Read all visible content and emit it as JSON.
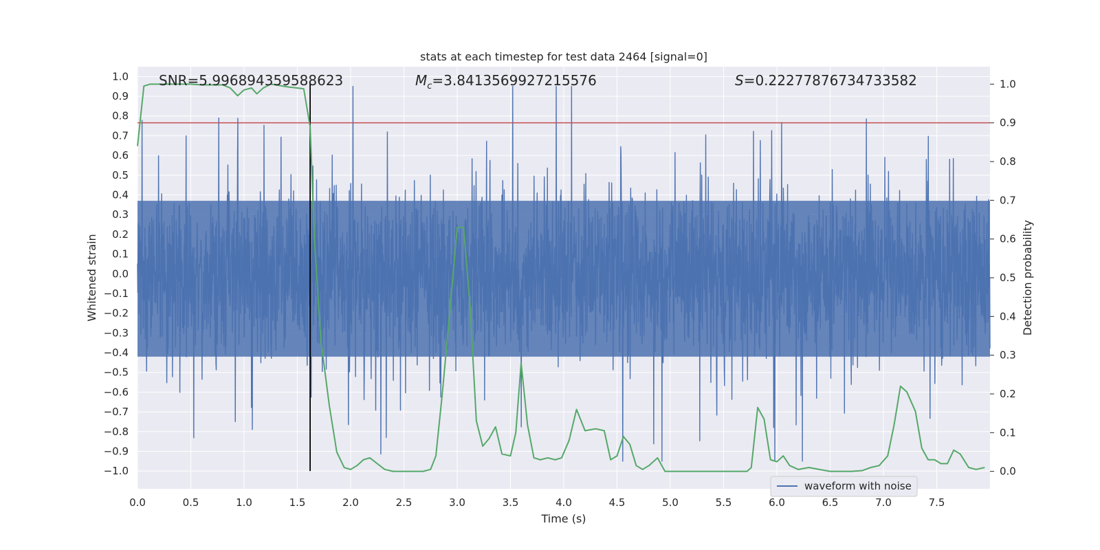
{
  "chart_data": {
    "type": "line",
    "title": "stats at each timestep for test data 2464 [signal=0]",
    "xlabel": "Time (s)",
    "ylabel_left": "Whitened strain",
    "ylabel_right": "Detection probability",
    "xlim": [
      0.0,
      8.0
    ],
    "ylim_left": [
      -1.09,
      1.05
    ],
    "ylim_right": [
      -0.045,
      1.045
    ],
    "x_ticks": [
      "0.0",
      "0.5",
      "1.0",
      "1.5",
      "2.0",
      "2.5",
      "3.0",
      "3.5",
      "4.0",
      "4.5",
      "5.0",
      "5.5",
      "6.0",
      "6.5",
      "7.0",
      "7.5"
    ],
    "y_ticks_left": [
      "1.0",
      "0.9",
      "0.8",
      "0.7",
      "0.6",
      "0.5",
      "0.4",
      "0.3",
      "0.2",
      "0.1",
      "0.0",
      "-0.1",
      "-0.2",
      "-0.3",
      "-0.4",
      "-0.5",
      "-0.6",
      "-0.7",
      "-0.8",
      "-0.9",
      "-1.0"
    ],
    "y_ticks_right": [
      "1.0",
      "0.9",
      "0.8",
      "0.7",
      "0.6",
      "0.5",
      "0.4",
      "0.3",
      "0.2",
      "0.1",
      "0.0"
    ],
    "grid": true,
    "legend": {
      "placement": "lower-right",
      "entries": [
        "waveform with noise"
      ]
    },
    "annotations": {
      "snr": "SNR=5.996894359588623",
      "mc_symbol": "M",
      "mc_subscript": "c",
      "mc_value": "=3.8413569927215576",
      "s_symbol": "S",
      "s_value": "=0.22277876734733582"
    },
    "threshold_right": 0.9,
    "vertical_marker_x": 1.62,
    "series": [
      {
        "name": "waveform with noise",
        "color": "#4c72b0",
        "axis": "left",
        "kind": "noise",
        "core_envelope": [
          -0.42,
          0.37
        ],
        "max_excursion": [
          -0.95,
          0.95
        ]
      },
      {
        "name": "detection probability",
        "color": "#55a868",
        "axis": "right",
        "x": [
          0.0,
          0.06,
          0.12,
          0.2,
          0.3,
          0.4,
          0.5,
          0.6,
          0.7,
          0.8,
          0.87,
          0.94,
          1.0,
          1.07,
          1.12,
          1.18,
          1.25,
          1.3,
          1.4,
          1.5,
          1.56,
          1.62,
          1.66,
          1.72,
          1.8,
          1.87,
          1.94,
          2.0,
          2.06,
          2.12,
          2.18,
          2.25,
          2.32,
          2.4,
          2.5,
          2.6,
          2.68,
          2.75,
          2.8,
          2.86,
          2.92,
          3.0,
          3.06,
          3.12,
          3.18,
          3.24,
          3.3,
          3.36,
          3.42,
          3.5,
          3.55,
          3.6,
          3.66,
          3.72,
          3.78,
          3.85,
          3.92,
          3.98,
          4.05,
          4.12,
          4.2,
          4.3,
          4.38,
          4.44,
          4.5,
          4.56,
          4.62,
          4.68,
          4.74,
          4.8,
          4.88,
          4.95,
          5.0,
          5.1,
          5.2,
          5.3,
          5.4,
          5.5,
          5.6,
          5.65,
          5.72,
          5.76,
          5.82,
          5.88,
          5.94,
          6.0,
          6.06,
          6.12,
          6.2,
          6.3,
          6.4,
          6.5,
          6.6,
          6.7,
          6.8,
          6.88,
          6.96,
          7.04,
          7.1,
          7.16,
          7.22,
          7.3,
          7.36,
          7.42,
          7.48,
          7.54,
          7.6,
          7.66,
          7.72,
          7.8,
          7.87,
          7.95
        ],
        "values": [
          0.84,
          0.995,
          1.0,
          1.0,
          1.0,
          1.0,
          1.0,
          0.998,
          0.998,
          0.998,
          0.99,
          0.97,
          0.985,
          0.99,
          0.975,
          0.99,
          1.0,
          0.998,
          0.993,
          0.99,
          0.988,
          0.89,
          0.6,
          0.34,
          0.17,
          0.05,
          0.01,
          0.005,
          0.015,
          0.03,
          0.035,
          0.02,
          0.005,
          0.0,
          0.0,
          0.0,
          0.0,
          0.005,
          0.04,
          0.2,
          0.38,
          0.63,
          0.63,
          0.43,
          0.13,
          0.065,
          0.085,
          0.115,
          0.045,
          0.04,
          0.1,
          0.28,
          0.12,
          0.035,
          0.03,
          0.035,
          0.03,
          0.035,
          0.08,
          0.16,
          0.105,
          0.11,
          0.105,
          0.03,
          0.04,
          0.09,
          0.07,
          0.015,
          0.005,
          0.015,
          0.035,
          0.0,
          0.0,
          0.0,
          0.0,
          0.0,
          0.0,
          0.0,
          0.0,
          0.0,
          0.0,
          0.01,
          0.165,
          0.135,
          0.03,
          0.025,
          0.04,
          0.015,
          0.005,
          0.01,
          0.005,
          0.0,
          0.0,
          0.0,
          0.002,
          0.01,
          0.015,
          0.04,
          0.12,
          0.22,
          0.205,
          0.155,
          0.06,
          0.03,
          0.03,
          0.02,
          0.02,
          0.055,
          0.045,
          0.01,
          0.005,
          0.01
        ]
      }
    ],
    "colors": {
      "plot_background": "#eaeaf2",
      "grid": "#ffffff",
      "threshold_line": "#c44e52",
      "marker_line": "#000000"
    }
  }
}
